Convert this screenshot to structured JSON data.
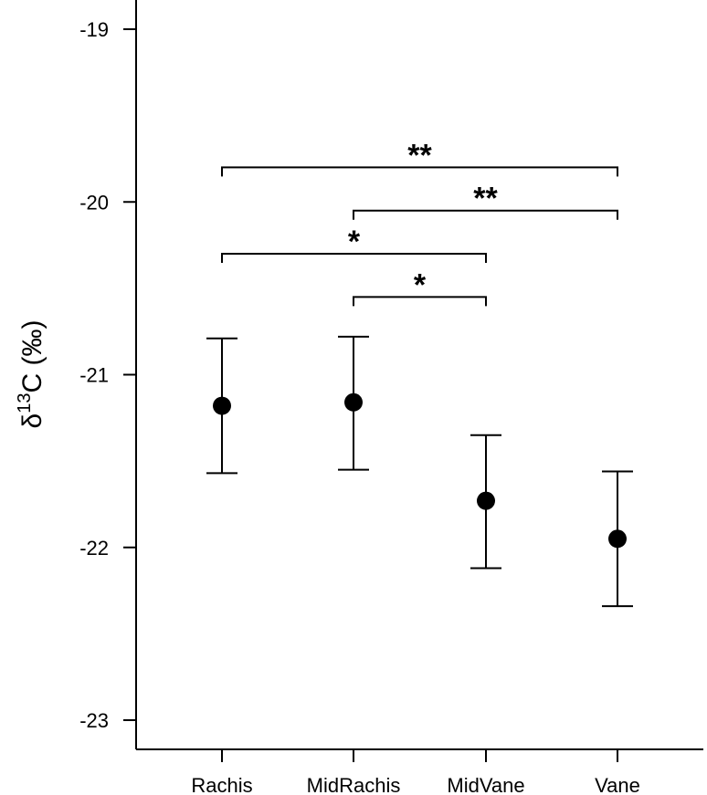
{
  "chart_data": {
    "type": "scatter",
    "title": "",
    "ylabel": "δ13C (‰)",
    "ylabel_parts": {
      "symbol": "δ",
      "superscript": "13",
      "rest": "C (‰)"
    },
    "xlabel": "",
    "categories": [
      "Rachis",
      "MidRachis",
      "MidVane",
      "Vane"
    ],
    "ylim": [
      -23.15,
      -18.85
    ],
    "yticks": [
      -19,
      -20,
      -21,
      -22,
      -23
    ],
    "ytick_labels": [
      "-19",
      "-20",
      "-21",
      "-22",
      "-23"
    ],
    "series": [
      {
        "values": [
          -21.18,
          -21.16,
          -21.73,
          -21.95
        ],
        "error_low": [
          -21.57,
          -21.55,
          -22.12,
          -22.34
        ],
        "error_high": [
          -20.79,
          -20.78,
          -21.35,
          -21.56
        ]
      }
    ],
    "significance": [
      {
        "from": "Rachis",
        "to": "Vane",
        "y": -19.8,
        "label": "**"
      },
      {
        "from": "MidRachis",
        "to": "Vane",
        "y": -20.05,
        "label": "**"
      },
      {
        "from": "Rachis",
        "to": "MidVane",
        "y": -20.3,
        "label": "*"
      },
      {
        "from": "MidRachis",
        "to": "MidVane",
        "y": -20.55,
        "label": "*"
      }
    ],
    "grid": false,
    "legend": "none",
    "marker_color": "#000000"
  }
}
